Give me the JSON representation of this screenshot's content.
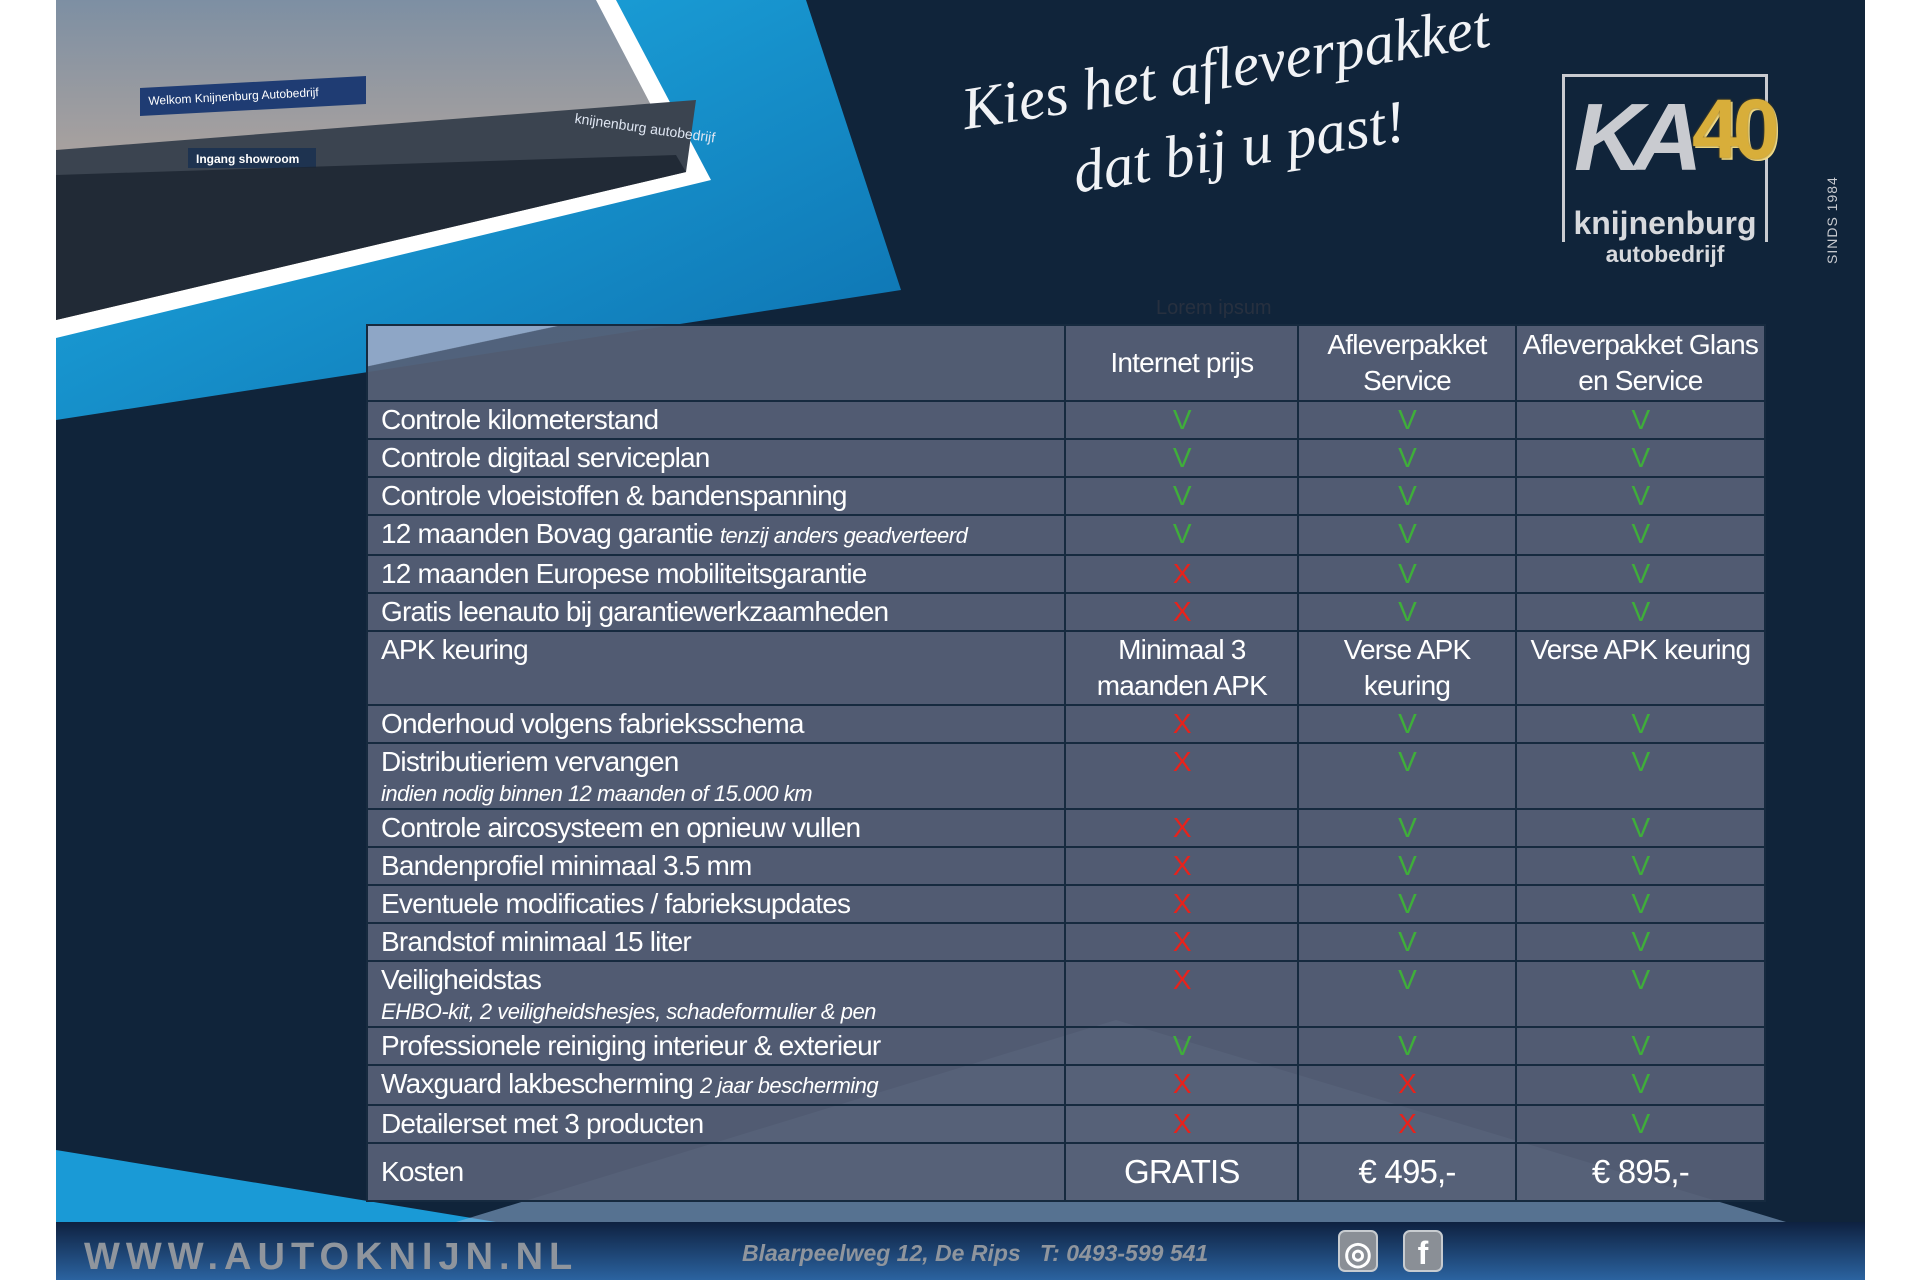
{
  "headline": {
    "line1": "Kies het afleverpakket",
    "line2": "dat bij u past!"
  },
  "logo": {
    "mark": "KA",
    "anniversary": "40",
    "name": "knijnenburg",
    "sub": "autobedrijf",
    "since": "SINDS 1984"
  },
  "photo": {
    "sign_top": "Welkom Knijnenburg Autobedrijf",
    "sign_entrance": "Ingang showroom",
    "sign_facade": "knijnenburg autobedrijf"
  },
  "faint_text": "Lorem ipsum",
  "table": {
    "headers": [
      "",
      "Internet prijs",
      "Afleverpakket Service",
      "Afleverpakket Glans en Service"
    ],
    "rows": [
      {
        "label": "Controle kilometerstand",
        "values": [
          "V",
          "V",
          "V"
        ]
      },
      {
        "label": "Controle digitaal serviceplan",
        "values": [
          "V",
          "V",
          "V"
        ]
      },
      {
        "label": "Controle vloeistoffen & bandenspanning",
        "values": [
          "V",
          "V",
          "V"
        ]
      },
      {
        "label": "12 maanden Bovag garantie",
        "note": "tenzij anders geadverteerd",
        "values": [
          "V",
          "V",
          "V"
        ]
      },
      {
        "label": "12 maanden Europese mobiliteitsgarantie",
        "values": [
          "X",
          "V",
          "V"
        ]
      },
      {
        "label": "Gratis leenauto bij garantiewerkzaamheden",
        "values": [
          "X",
          "V",
          "V"
        ]
      },
      {
        "label": "APK keuring",
        "values": [
          "Minimaal 3 maanden APK",
          "Verse APK keuring",
          "Verse APK keuring"
        ]
      },
      {
        "label": "Onderhoud volgens fabrieksschema",
        "values": [
          "X",
          "V",
          "V"
        ]
      },
      {
        "label": "Distributieriem vervangen",
        "sub": "indien nodig binnen 12 maanden of 15.000 km",
        "values": [
          "X",
          "V",
          "V"
        ]
      },
      {
        "label": "Controle aircosysteem en opnieuw vullen",
        "values": [
          "X",
          "V",
          "V"
        ]
      },
      {
        "label": "Bandenprofiel minimaal 3.5 mm",
        "values": [
          "X",
          "V",
          "V"
        ]
      },
      {
        "label": "Eventuele modificaties / fabrieksupdates",
        "values": [
          "X",
          "V",
          "V"
        ]
      },
      {
        "label": "Brandstof minimaal 15 liter",
        "values": [
          "X",
          "V",
          "V"
        ]
      },
      {
        "label": "Veiligheidstas",
        "sub": "EHBO-kit, 2 veiligheidshesjes, schadeformulier & pen",
        "values": [
          "X",
          "V",
          "V"
        ]
      },
      {
        "label": "Professionele reiniging interieur & exterieur",
        "values": [
          "V",
          "V",
          "V"
        ]
      },
      {
        "label": "Waxguard lakbescherming",
        "note": "2 jaar bescherming",
        "values": [
          "X",
          "X",
          "V"
        ]
      },
      {
        "label": "Detailerset met 3 producten",
        "values": [
          "X",
          "X",
          "V"
        ]
      }
    ],
    "cost": {
      "label": "Kosten",
      "values": [
        "GRATIS",
        "€ 495,-",
        "€ 895,-"
      ]
    }
  },
  "footer": {
    "url": "WWW.AUTOKNIJN.NL",
    "address": "Blaarpeelweg 12, De Rips   T: 0493-599 541",
    "icons": [
      "instagram-icon",
      "facebook-icon"
    ]
  },
  "colors": {
    "background": "#10243a",
    "accent_blue": "#1a9ad6",
    "check": "#3fae3a",
    "cross": "#e8221b",
    "cell": "#566076"
  }
}
